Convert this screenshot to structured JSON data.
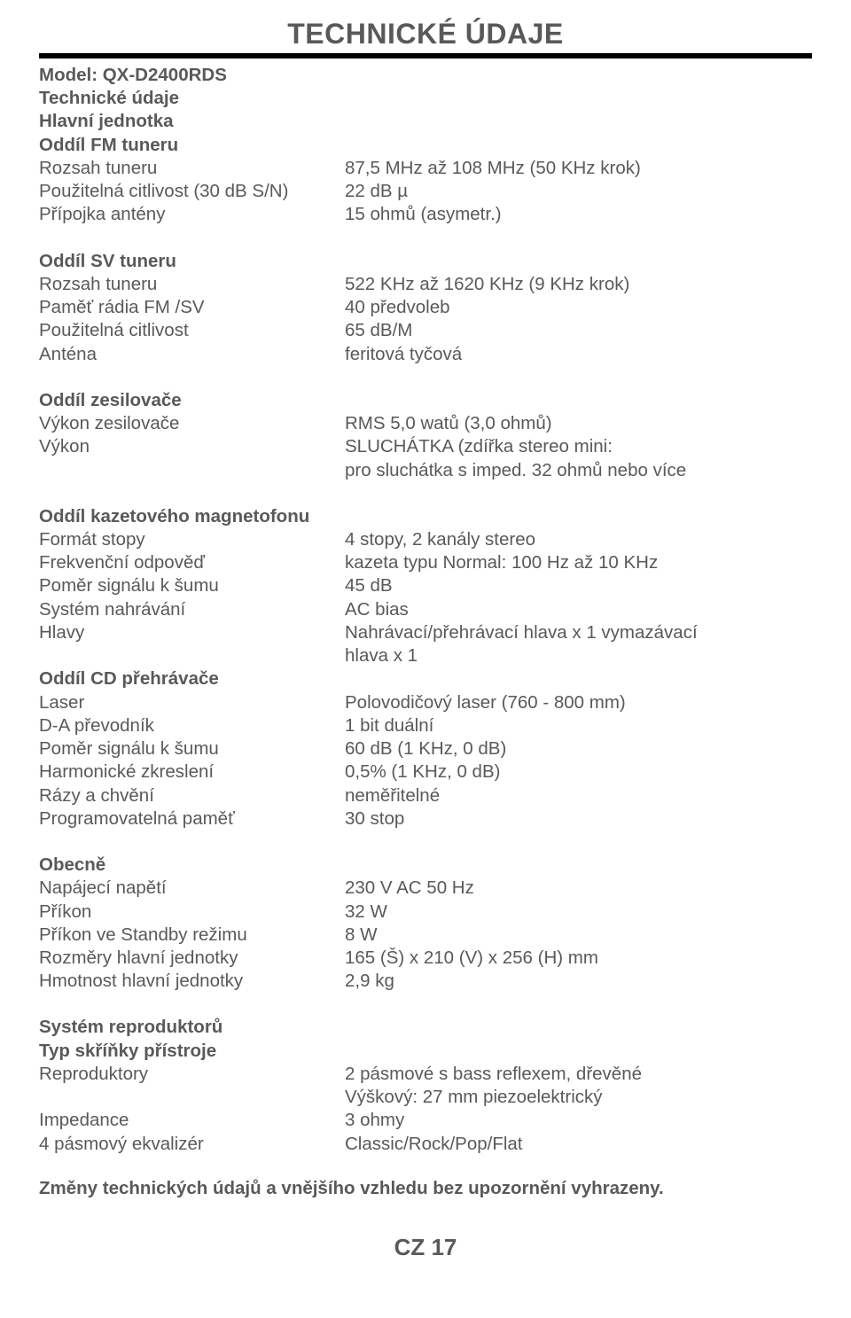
{
  "title": "TECHNICKÉ ÚDAJE",
  "header": {
    "model_label": "Model: QX-D2400RDS",
    "tech_label": "Technické údaje",
    "unit_label": "Hlavní jednotka"
  },
  "fm": {
    "section": "Oddíl FM tuneru",
    "range_l": "Rozsah tuneru",
    "range_v": "87,5 MHz až 108 MHz (50 KHz krok)",
    "sens_l": "Použitelná citlivost (30 dB S/N)",
    "sens_v": "22 dB µ",
    "ant_l": "Přípojka antény",
    "ant_v": "15 ohmů (asymetr.)"
  },
  "sv": {
    "section": "Oddíl SV tuneru",
    "range_l": "Rozsah tuneru",
    "range_v": "522 KHz až 1620 KHz (9 KHz krok)",
    "mem_l": "Paměť rádia FM /SV",
    "mem_v": "40 předvoleb",
    "sens_l": "Použitelná citlivost",
    "sens_v": "65 dB/M",
    "ant_l": "Anténa",
    "ant_v": "feritová tyčová"
  },
  "amp": {
    "section": "Oddíl zesilovače",
    "power_l": "Výkon zesilovače",
    "power_v": "RMS 5,0 watů (3,0 ohmů)",
    "out_l": "Výkon",
    "out_v1": "SLUCHÁTKA (zdířka stereo mini:",
    "out_v2": "pro sluchátka s imped. 32 ohmů nebo více"
  },
  "tape": {
    "section": "Oddíl kazetového magnetofonu",
    "track_l": "Formát stopy",
    "track_v": "4 stopy, 2 kanály stereo",
    "freq_l": "Frekvenční odpověď",
    "freq_v": "kazeta typu Normal: 100 Hz až 10 KHz",
    "sn_l": "Poměr signálu k šumu",
    "sn_v": "45 dB",
    "rec_l": "Systém nahrávání",
    "rec_v": "AC bias",
    "heads_l": "Hlavy",
    "heads_v1": "Nahrávací/přehrávací hlava x 1 vymazávací",
    "heads_v2": "hlava x 1"
  },
  "cd": {
    "section": "Oddíl CD přehrávače",
    "laser_l": "Laser",
    "laser_v": "Polovodičový laser  (760 - 800 mm)",
    "da_l": "D-A převodník",
    "da_v": "1 bit duální",
    "sn_l": "Poměr signálu k šumu",
    "sn_v": "60 dB (1 KHz, 0 dB)",
    "thd_l": "Harmonické zkreslení",
    "thd_v": "0,5% (1 KHz, 0 dB)",
    "wow_l": "Rázy a chvění",
    "wow_v": "neměřitelné",
    "prog_l": "Programovatelná paměť",
    "prog_v": "30 stop"
  },
  "gen": {
    "section": "Obecně",
    "volt_l": "Napájecí napětí",
    "volt_v": "230 V AC 50 Hz",
    "pow_l": "Příkon",
    "pow_v": "32 W",
    "standby_l": "Příkon ve Standby režimu",
    "standby_v": "8 W",
    "dim_l": "Rozměry hlavní jednotky",
    "dim_v": "165 (Š) x  210 (V) x 256 (H) mm",
    "weight_l": "Hmotnost hlavní jednotky",
    "weight_v": "2,9 kg"
  },
  "spk": {
    "section1": "Systém reproduktorů",
    "section2": "Typ skříňky přístroje",
    "spk_l": "Reproduktory",
    "spk_v1": "2 pásmové s bass reflexem, dřevěné",
    "spk_v2": "Výškový: 27 mm piezoelektrický",
    "imp_l": "Impedance",
    "imp_v": "3 ohmy",
    "eq_l": "4 pásmový ekvalizér",
    "eq_v": "Classic/Rock/Pop/Flat"
  },
  "footnote": "Změny technických údajů a vnějšího vzhledu bez upozornění vyhrazeny.",
  "page": "CZ 17"
}
